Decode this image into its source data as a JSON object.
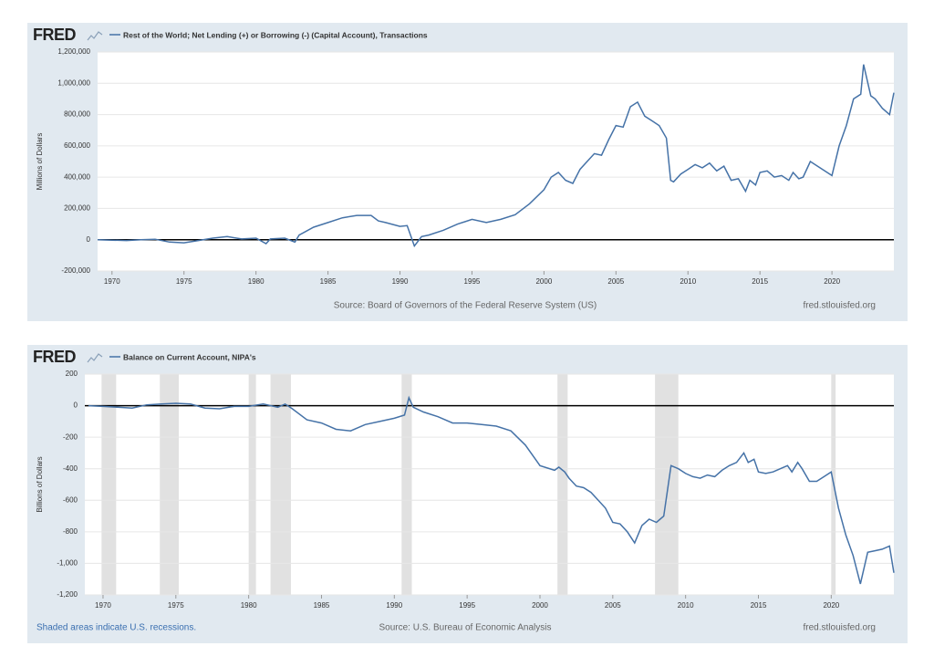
{
  "chart_data": [
    {
      "type": "line",
      "logo": "FRED",
      "title": "Rest of the World; Net Lending (+) or Borrowing (-) (Capital Account), Transactions",
      "ylabel": "Millions of Dollars",
      "source": "Source: Board of Governors of the Federal Reserve System (US)",
      "site": "fred.stlouisfed.org",
      "color": "#4572a7",
      "xlim": [
        1969,
        2024.3
      ],
      "xticks": [
        1970,
        1975,
        1980,
        1985,
        1990,
        1995,
        2000,
        2005,
        2010,
        2015,
        2020
      ],
      "ylim": [
        -200000,
        1200000
      ],
      "yticks": [
        {
          "value": -200000,
          "label": "-200,000"
        },
        0,
        {
          "value": 200000,
          "label": "200,000"
        },
        {
          "value": 400000,
          "label": "400,000"
        },
        {
          "value": 600000,
          "label": "600,000"
        },
        {
          "value": 800000,
          "label": "800,000"
        },
        {
          "value": 1000000,
          "label": "1,000,000"
        },
        {
          "value": 1200000,
          "label": "1,200,000"
        }
      ],
      "grid": true,
      "x": [
        1969,
        1970,
        1971,
        1972,
        1973,
        1974,
        1975,
        1976,
        1977,
        1978,
        1979,
        1980,
        1980.7,
        1981,
        1982,
        1982.7,
        1983,
        1984,
        1985,
        1986,
        1987,
        1988,
        1988.5,
        1989,
        1990,
        1990.5,
        1991,
        1991.5,
        1992,
        1993,
        1994,
        1995,
        1996,
        1997,
        1998,
        1999,
        2000,
        2000.5,
        2001,
        2001.5,
        2002,
        2002.5,
        2003,
        2003.5,
        2004,
        2004.5,
        2005,
        2005.5,
        2006,
        2006.5,
        2007,
        2007.5,
        2008,
        2008.5,
        2008.8,
        2009,
        2009.5,
        2010,
        2010.5,
        2011,
        2011.5,
        2012,
        2012.5,
        2013,
        2013.5,
        2014,
        2014.3,
        2014.7,
        2015,
        2015.5,
        2016,
        2016.5,
        2017,
        2017.3,
        2017.7,
        2018,
        2018.5,
        2019,
        2019.5,
        2020,
        2020.5,
        2021,
        2021.5,
        2022,
        2022.2,
        2022.7,
        2023,
        2023.5,
        2024,
        2024.3
      ],
      "values": [
        0,
        -3000,
        -5000,
        0,
        3000,
        -15000,
        -20000,
        -5000,
        10000,
        20000,
        5000,
        10000,
        -25000,
        5000,
        10000,
        -15000,
        30000,
        80000,
        110000,
        140000,
        155000,
        155000,
        120000,
        110000,
        85000,
        90000,
        -40000,
        20000,
        30000,
        60000,
        100000,
        130000,
        110000,
        130000,
        160000,
        230000,
        320000,
        400000,
        430000,
        380000,
        360000,
        450000,
        500000,
        550000,
        540000,
        640000,
        730000,
        720000,
        850000,
        880000,
        790000,
        760000,
        730000,
        650000,
        380000,
        370000,
        420000,
        450000,
        480000,
        460000,
        490000,
        440000,
        470000,
        380000,
        390000,
        310000,
        380000,
        350000,
        430000,
        440000,
        400000,
        410000,
        380000,
        430000,
        390000,
        400000,
        500000,
        470000,
        440000,
        410000,
        600000,
        730000,
        900000,
        930000,
        1120000,
        920000,
        900000,
        840000,
        800000,
        940000
      ]
    },
    {
      "type": "line",
      "logo": "FRED",
      "title": "Balance on Current Account, NIPA's",
      "ylabel": "Billions of Dollars",
      "source": "Source: U.S. Bureau of Economic Analysis",
      "site": "fred.stlouisfed.org",
      "note": "Shaded areas indicate U.S. recessions.",
      "color": "#4572a7",
      "xlim": [
        1968.75,
        2024.3
      ],
      "xticks": [
        1970,
        1975,
        1980,
        1985,
        1990,
        1995,
        2000,
        2005,
        2010,
        2015,
        2020
      ],
      "ylim": [
        -1200,
        200
      ],
      "yticks": [
        {
          "value": -1200,
          "label": "-1,200"
        },
        {
          "value": -1000,
          "label": "-1,000"
        },
        -800,
        -600,
        -400,
        -200,
        0,
        200
      ],
      "grid": true,
      "recessions": [
        [
          1969.9,
          1970.9
        ],
        [
          1973.9,
          1975.2
        ],
        [
          1980,
          1980.5
        ],
        [
          1981.5,
          1982.9
        ],
        [
          1990.5,
          1991.2
        ],
        [
          2001.2,
          2001.9
        ],
        [
          2007.9,
          2009.5
        ],
        [
          2020,
          2020.3
        ]
      ],
      "x": [
        1969,
        1970,
        1971,
        1972,
        1973,
        1974,
        1975,
        1976,
        1977,
        1978,
        1979,
        1980,
        1981,
        1982,
        1982.5,
        1983,
        1984,
        1985,
        1986,
        1987,
        1988,
        1989,
        1990,
        1990.7,
        1991,
        1991.3,
        1992,
        1993,
        1994,
        1995,
        1996,
        1997,
        1998,
        1999,
        2000,
        2001,
        2001.3,
        2001.7,
        2002,
        2002.5,
        2003,
        2003.5,
        2004,
        2004.5,
        2005,
        2005.5,
        2006,
        2006.5,
        2007,
        2007.5,
        2008,
        2008.5,
        2009,
        2009.5,
        2010,
        2010.5,
        2011,
        2011.5,
        2012,
        2012.5,
        2013,
        2013.5,
        2014,
        2014.3,
        2014.7,
        2015,
        2015.5,
        2016,
        2016.5,
        2017,
        2017.3,
        2017.7,
        2018,
        2018.5,
        2019,
        2019.5,
        2020,
        2020.5,
        2021,
        2021.5,
        2022,
        2022.5,
        2023,
        2023.5,
        2024,
        2024.3
      ],
      "values": [
        0,
        -5,
        -10,
        -15,
        5,
        10,
        15,
        10,
        -15,
        -20,
        -5,
        -5,
        10,
        -10,
        10,
        -20,
        -90,
        -110,
        -150,
        -160,
        -120,
        -100,
        -80,
        -60,
        50,
        -10,
        -40,
        -70,
        -110,
        -110,
        -120,
        -130,
        -160,
        -250,
        -380,
        -410,
        -390,
        -420,
        -460,
        -510,
        -520,
        -550,
        -600,
        -650,
        -740,
        -750,
        -800,
        -870,
        -760,
        -720,
        -740,
        -700,
        -380,
        -400,
        -430,
        -450,
        -460,
        -440,
        -450,
        -410,
        -380,
        -360,
        -300,
        -360,
        -340,
        -420,
        -430,
        -420,
        -400,
        -380,
        -420,
        -360,
        -400,
        -480,
        -480,
        -450,
        -420,
        -650,
        -820,
        -950,
        -1130,
        -930,
        -920,
        -910,
        -890,
        -1060
      ]
    }
  ]
}
